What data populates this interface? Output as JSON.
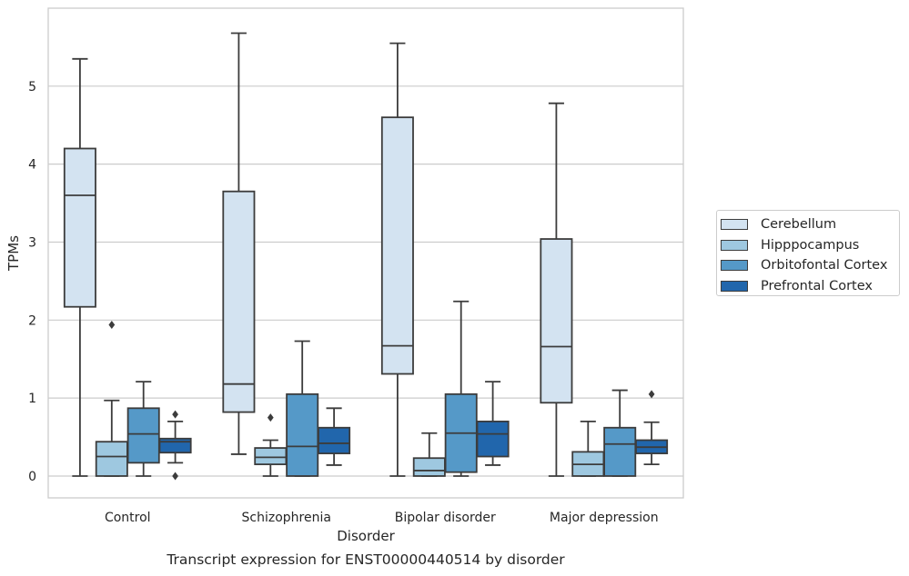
{
  "chart_data": {
    "type": "box",
    "title": "Transcript expression for ENST00000440514 by disorder",
    "xlabel": "Disorder",
    "ylabel": "TPMs",
    "ylim": [
      -0.28,
      6.0
    ],
    "yticks": [
      "0",
      "1",
      "2",
      "3",
      "4",
      "5"
    ],
    "grid": true,
    "legend_position": "right",
    "categories": [
      "Control",
      "Schizophrenia",
      "Bipolar disorder",
      "Major depression"
    ],
    "series": [
      {
        "name": "Cerebellum",
        "color": "#d3e3f1",
        "boxes": [
          {
            "whisker_low": 0.0,
            "q1": 2.17,
            "median": 3.6,
            "q3": 4.2,
            "whisker_high": 5.35,
            "outliers": []
          },
          {
            "whisker_low": 0.28,
            "q1": 0.82,
            "median": 1.18,
            "q3": 3.65,
            "whisker_high": 5.68,
            "outliers": []
          },
          {
            "whisker_low": 0.0,
            "q1": 1.31,
            "median": 1.67,
            "q3": 4.6,
            "whisker_high": 5.55,
            "outliers": []
          },
          {
            "whisker_low": 0.0,
            "q1": 0.94,
            "median": 1.66,
            "q3": 3.04,
            "whisker_high": 4.78,
            "outliers": []
          }
        ]
      },
      {
        "name": "Hipppocampus",
        "color": "#9ec8e0",
        "boxes": [
          {
            "whisker_low": 0.0,
            "q1": 0.0,
            "median": 0.25,
            "q3": 0.44,
            "whisker_high": 0.97,
            "outliers": [
              1.94
            ]
          },
          {
            "whisker_low": 0.0,
            "q1": 0.15,
            "median": 0.24,
            "q3": 0.36,
            "whisker_high": 0.46,
            "outliers": [
              0.75
            ]
          },
          {
            "whisker_low": 0.0,
            "q1": 0.0,
            "median": 0.07,
            "q3": 0.23,
            "whisker_high": 0.55,
            "outliers": []
          },
          {
            "whisker_low": 0.0,
            "q1": 0.0,
            "median": 0.15,
            "q3": 0.31,
            "whisker_high": 0.7,
            "outliers": []
          }
        ]
      },
      {
        "name": "Orbitofontal Cortex",
        "color": "#5599c8",
        "boxes": [
          {
            "whisker_low": 0.0,
            "q1": 0.17,
            "median": 0.54,
            "q3": 0.87,
            "whisker_high": 1.21,
            "outliers": []
          },
          {
            "whisker_low": 0.0,
            "q1": 0.0,
            "median": 0.38,
            "q3": 1.05,
            "whisker_high": 1.73,
            "outliers": []
          },
          {
            "whisker_low": 0.0,
            "q1": 0.05,
            "median": 0.55,
            "q3": 1.05,
            "whisker_high": 2.24,
            "outliers": []
          },
          {
            "whisker_low": 0.0,
            "q1": 0.0,
            "median": 0.41,
            "q3": 0.62,
            "whisker_high": 1.1,
            "outliers": []
          }
        ]
      },
      {
        "name": "Prefrontal Cortex",
        "color": "#2166ac",
        "boxes": [
          {
            "whisker_low": 0.17,
            "q1": 0.3,
            "median": 0.44,
            "q3": 0.48,
            "whisker_high": 0.7,
            "outliers": [
              0.79,
              0.0
            ]
          },
          {
            "whisker_low": 0.14,
            "q1": 0.29,
            "median": 0.42,
            "q3": 0.62,
            "whisker_high": 0.87,
            "outliers": []
          },
          {
            "whisker_low": 0.14,
            "q1": 0.25,
            "median": 0.54,
            "q3": 0.7,
            "whisker_high": 1.21,
            "outliers": []
          },
          {
            "whisker_low": 0.15,
            "q1": 0.29,
            "median": 0.37,
            "q3": 0.46,
            "whisker_high": 0.69,
            "outliers": [
              1.05
            ]
          }
        ]
      }
    ]
  }
}
